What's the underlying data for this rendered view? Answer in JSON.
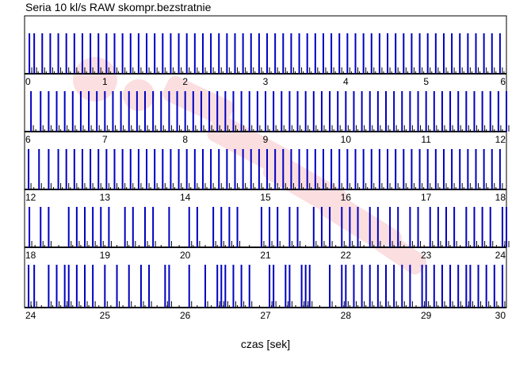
{
  "title": "Seria 10 kl/s RAW skompr.bezstratnie",
  "xlabel": "czas [sek]",
  "colors": {
    "marker": "#0000c0",
    "axis": "#000000",
    "watermark": "#f4a3a8"
  },
  "chart_data": {
    "type": "bar",
    "title": "Seria 10 kl/s RAW skompr.bezstratnie",
    "xlabel": "czas [sek]",
    "ylabel": "",
    "grid": false,
    "legend": "none",
    "rows": [
      {
        "xlim": [
          0,
          6
        ],
        "ticks": [
          0,
          1,
          2,
          3,
          4,
          5,
          6
        ],
        "events": [
          0.06,
          0.12,
          0.22,
          0.32,
          0.42,
          0.52,
          0.62,
          0.72,
          0.82,
          0.92,
          1.02,
          1.12,
          1.22,
          1.32,
          1.42,
          1.52,
          1.62,
          1.72,
          1.82,
          1.92,
          2.02,
          2.12,
          2.22,
          2.32,
          2.42,
          2.52,
          2.62,
          2.72,
          2.82,
          2.92,
          3.02,
          3.12,
          3.22,
          3.32,
          3.42,
          3.52,
          3.62,
          3.72,
          3.82,
          3.92,
          4.02,
          4.12,
          4.22,
          4.32,
          4.42,
          4.52,
          4.62,
          4.72,
          4.82,
          4.92,
          5.02,
          5.12,
          5.22,
          5.32,
          5.42,
          5.52,
          5.62,
          5.72,
          5.82,
          5.92,
          6.02
        ]
      },
      {
        "xlim": [
          6,
          12
        ],
        "ticks": [
          6,
          7,
          8,
          9,
          10,
          11,
          12
        ],
        "events": [
          6.08,
          6.2,
          6.3,
          6.4,
          6.5,
          6.6,
          6.7,
          6.8,
          6.9,
          7.0,
          7.1,
          7.2,
          7.3,
          7.4,
          7.5,
          7.6,
          7.7,
          7.8,
          7.9,
          8.0,
          8.1,
          8.2,
          8.3,
          8.4,
          8.5,
          8.6,
          8.7,
          8.8,
          8.9,
          9.0,
          9.1,
          9.2,
          9.3,
          9.4,
          9.5,
          9.6,
          9.7,
          9.8,
          9.9,
          10.0,
          10.1,
          10.2,
          10.3,
          10.4,
          10.5,
          10.6,
          10.7,
          10.8,
          10.9,
          11.0,
          11.1,
          11.2,
          11.3,
          11.4,
          11.5,
          11.6,
          11.7,
          11.8,
          11.9,
          12.0
        ]
      },
      {
        "xlim": [
          12,
          18
        ],
        "ticks": [
          12,
          13,
          14,
          15,
          16,
          17,
          18
        ],
        "events": [
          12.05,
          12.18,
          12.3,
          12.42,
          12.52,
          12.62,
          12.72,
          12.82,
          12.92,
          13.02,
          13.12,
          13.22,
          13.32,
          13.42,
          13.52,
          13.62,
          13.72,
          13.82,
          13.92,
          14.02,
          14.12,
          14.22,
          14.32,
          14.42,
          14.52,
          14.62,
          14.72,
          14.82,
          14.92,
          15.02,
          15.12,
          15.22,
          15.32,
          15.42,
          15.52,
          15.62,
          15.72,
          15.82,
          15.92,
          16.02,
          16.12,
          16.22,
          16.32,
          16.42,
          16.52,
          16.62,
          16.72,
          16.82,
          16.92,
          17.02,
          17.12,
          17.22,
          17.32,
          17.42,
          17.52,
          17.62,
          17.72,
          17.82,
          17.92
        ]
      },
      {
        "xlim": [
          18,
          24
        ],
        "ticks": [
          18,
          19,
          20,
          21,
          22,
          23,
          24
        ],
        "events": [
          18.06,
          18.2,
          18.3,
          18.55,
          18.65,
          18.75,
          18.85,
          18.95,
          19.05,
          19.25,
          19.35,
          19.5,
          19.6,
          19.8,
          20.05,
          20.15,
          20.35,
          20.45,
          20.55,
          20.65,
          20.95,
          21.05,
          21.15,
          21.3,
          21.4,
          21.6,
          21.7,
          21.8,
          21.95,
          22.05,
          22.15,
          22.3,
          22.4,
          22.55,
          22.65,
          22.8,
          22.9,
          23.05,
          23.15,
          23.25,
          23.35,
          23.5,
          23.6,
          23.7,
          23.8,
          23.95,
          24.0
        ]
      },
      {
        "xlim": [
          24,
          30
        ],
        "ticks": [
          24,
          25,
          26,
          27,
          28,
          29,
          30
        ],
        "events": [
          24.05,
          24.12,
          24.3,
          24.4,
          24.5,
          24.55,
          24.65,
          24.75,
          24.85,
          25.0,
          25.15,
          25.3,
          25.45,
          25.55,
          25.75,
          25.8,
          26.05,
          26.25,
          26.4,
          26.45,
          26.5,
          26.6,
          26.7,
          26.8,
          27.05,
          27.1,
          27.25,
          27.3,
          27.45,
          27.5,
          27.55,
          27.8,
          27.95,
          28.0,
          28.1,
          28.2,
          28.3,
          28.4,
          28.5,
          28.6,
          28.7,
          28.8,
          28.95,
          29.0,
          29.1,
          29.2,
          29.3,
          29.4,
          29.5,
          29.55,
          29.65,
          29.75,
          29.85,
          29.95
        ]
      }
    ]
  }
}
